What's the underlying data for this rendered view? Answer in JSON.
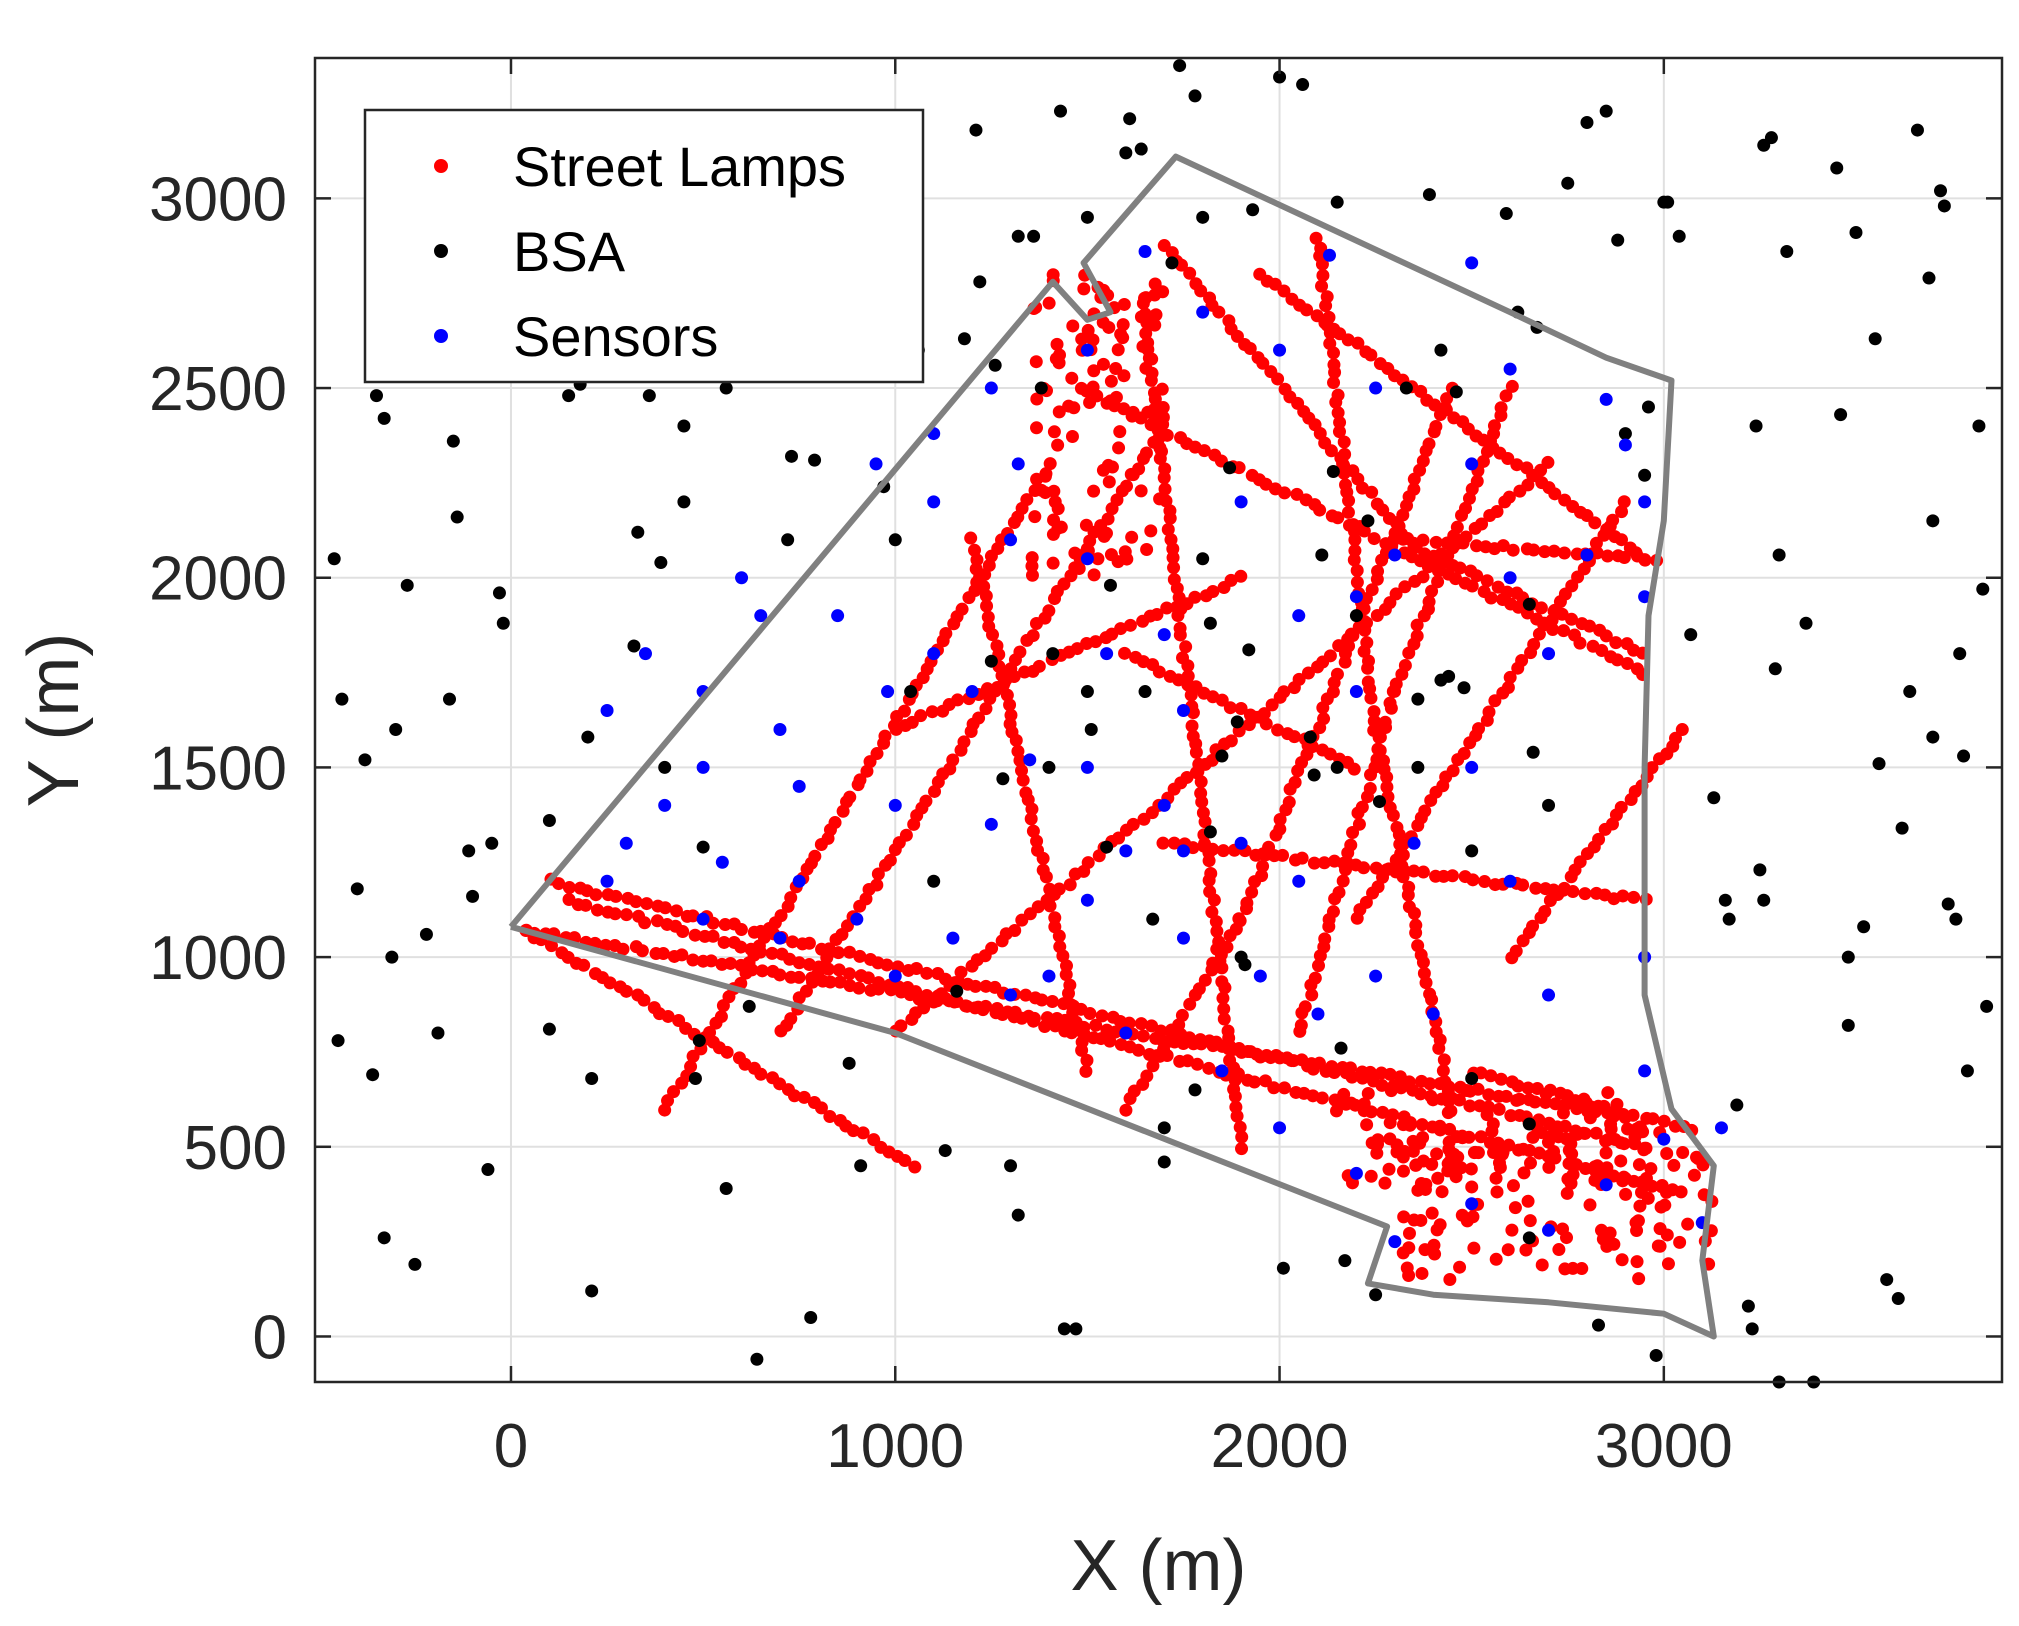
{
  "chart_data": {
    "type": "scatter",
    "xlabel": "X (m)",
    "ylabel": "Y (m)",
    "xlim": [
      -510,
      3880
    ],
    "ylim": [
      -120,
      3370
    ],
    "xticks": [
      0,
      1000,
      2000,
      3000
    ],
    "yticks": [
      0,
      500,
      1000,
      1500,
      2000,
      2500,
      3000
    ],
    "grid": true,
    "legend_position": "top-left",
    "colors": {
      "street_lamps": "#ff0000",
      "bsa": "#000000",
      "sensors": "#0000ff",
      "boundary": "#808080",
      "grid": "#e0e0e0",
      "axes": "#262626"
    },
    "legend": [
      "Street Lamps",
      "BSA",
      "Sensors"
    ],
    "boundary": [
      [
        0,
        1080
      ],
      [
        1410,
        2780
      ],
      [
        1500,
        2680
      ],
      [
        1560,
        2700
      ],
      [
        1490,
        2830
      ],
      [
        1730,
        3110
      ],
      [
        2600,
        2700
      ],
      [
        2850,
        2580
      ],
      [
        3020,
        2520
      ],
      [
        3000,
        2150
      ],
      [
        2960,
        1900
      ],
      [
        2950,
        1500
      ],
      [
        2950,
        1100
      ],
      [
        2950,
        900
      ],
      [
        3020,
        600
      ],
      [
        3130,
        450
      ],
      [
        3100,
        200
      ],
      [
        3130,
        0
      ],
      [
        3000,
        60
      ],
      [
        2700,
        90
      ],
      [
        2400,
        110
      ],
      [
        2230,
        140
      ],
      [
        2280,
        290
      ],
      [
        1000,
        800
      ],
      [
        0,
        1080
      ]
    ],
    "street_lamps": {
      "lines": [
        [
          [
            40,
            1070
          ],
          [
            2900,
            580
          ]
        ],
        [
          [
            40,
            1070
          ],
          [
            1050,
            450
          ]
        ],
        [
          [
            150,
            1150
          ],
          [
            3050,
            380
          ]
        ],
        [
          [
            100,
            1200
          ],
          [
            2950,
            500
          ]
        ],
        [
          [
            1000,
            800
          ],
          [
            2700,
            2300
          ]
        ],
        [
          [
            1700,
            2880
          ],
          [
            2350,
            2080
          ]
        ],
        [
          [
            2350,
            2080
          ],
          [
            2950,
            1800
          ]
        ],
        [
          [
            1480,
            2500
          ],
          [
            2950,
            1750
          ]
        ],
        [
          [
            1950,
            2800
          ],
          [
            2950,
            2050
          ]
        ],
        [
          [
            1650,
            2700
          ],
          [
            1900,
            500
          ]
        ],
        [
          [
            2100,
            2900
          ],
          [
            2250,
            1600
          ]
        ],
        [
          [
            2250,
            1600
          ],
          [
            2450,
            600
          ]
        ],
        [
          [
            2450,
            2500
          ],
          [
            1900,
            1100
          ]
        ],
        [
          [
            1900,
            1100
          ],
          [
            1600,
            600
          ]
        ],
        [
          [
            2600,
            2500
          ],
          [
            2300,
            1700
          ]
        ],
        [
          [
            2300,
            1700
          ],
          [
            2050,
            800
          ]
        ],
        [
          [
            1700,
            1300
          ],
          [
            2950,
            1150
          ]
        ],
        [
          [
            1600,
            1800
          ],
          [
            2200,
            1500
          ]
        ],
        [
          [
            700,
            800
          ],
          [
            1700,
            2400
          ]
        ],
        [
          [
            400,
            600
          ],
          [
            1400,
            2300
          ]
        ],
        [
          [
            1200,
            2100
          ],
          [
            1500,
            700
          ]
        ],
        [
          [
            2600,
            1000
          ],
          [
            3050,
            1600
          ]
        ],
        [
          [
            1000,
            1600
          ],
          [
            1900,
            2000
          ]
        ],
        [
          [
            2200,
            1100
          ],
          [
            2900,
            2200
          ]
        ],
        [
          [
            2300,
            2100
          ],
          [
            2980,
            2050
          ]
        ],
        [
          [
            2500,
            700
          ],
          [
            3050,
            550
          ]
        ]
      ],
      "blocks": [
        [
          [
            2300,
            150
          ],
          [
            3130,
            550
          ]
        ],
        [
          [
            1350,
            2000
          ],
          [
            1700,
            2800
          ]
        ],
        [
          [
            2100,
            400
          ],
          [
            2950,
            650
          ]
        ]
      ]
    },
    "sensors": [
      [
        1100,
        2380
      ],
      [
        1320,
        2300
      ],
      [
        1650,
        2860
      ],
      [
        2130,
        2850
      ],
      [
        2500,
        2830
      ],
      [
        2000,
        2600
      ],
      [
        2600,
        2550
      ],
      [
        2850,
        2470
      ],
      [
        2250,
        2500
      ],
      [
        1900,
        2200
      ],
      [
        2300,
        2060
      ],
      [
        2600,
        2000
      ],
      [
        2950,
        2200
      ],
      [
        2800,
        2060
      ],
      [
        2050,
        1900
      ],
      [
        1700,
        1850
      ],
      [
        1500,
        2050
      ],
      [
        1300,
        2100
      ],
      [
        1100,
        2200
      ],
      [
        1550,
        1800
      ],
      [
        1200,
        1700
      ],
      [
        980,
        1700
      ],
      [
        700,
        1600
      ],
      [
        500,
        1500
      ],
      [
        300,
        1300
      ],
      [
        400,
        1400
      ],
      [
        550,
        1250
      ],
      [
        750,
        1200
      ],
      [
        900,
        1100
      ],
      [
        1150,
        1050
      ],
      [
        1400,
        950
      ],
      [
        1700,
        1400
      ],
      [
        1900,
        1300
      ],
      [
        2200,
        1700
      ],
      [
        2500,
        1500
      ],
      [
        2700,
        1800
      ],
      [
        2950,
        1950
      ],
      [
        2600,
        1200
      ],
      [
        2950,
        1000
      ],
      [
        2950,
        700
      ],
      [
        3000,
        520
      ],
      [
        2850,
        400
      ],
      [
        2700,
        280
      ],
      [
        2500,
        350
      ],
      [
        2300,
        250
      ],
      [
        2200,
        430
      ],
      [
        2000,
        550
      ],
      [
        1850,
        700
      ],
      [
        1600,
        800
      ],
      [
        1300,
        900
      ],
      [
        1000,
        950
      ],
      [
        700,
        1050
      ],
      [
        500,
        1100
      ],
      [
        250,
        1200
      ],
      [
        1500,
        1500
      ],
      [
        1750,
        1650
      ],
      [
        2050,
        1200
      ],
      [
        2350,
        1300
      ],
      [
        2500,
        2300
      ],
      [
        2900,
        2350
      ],
      [
        1750,
        1280
      ],
      [
        1600,
        1280
      ],
      [
        1350,
        1520
      ],
      [
        1100,
        1800
      ],
      [
        850,
        1900
      ],
      [
        650,
        1900
      ],
      [
        600,
        2000
      ],
      [
        950,
        2300
      ],
      [
        1250,
        2500
      ],
      [
        1500,
        2600
      ],
      [
        1800,
        2700
      ],
      [
        2200,
        1950
      ],
      [
        2400,
        850
      ],
      [
        2700,
        900
      ],
      [
        3150,
        550
      ],
      [
        3100,
        300
      ],
      [
        2250,
        950
      ],
      [
        2100,
        850
      ],
      [
        1950,
        950
      ],
      [
        1750,
        1050
      ],
      [
        1500,
        1150
      ],
      [
        1250,
        1350
      ],
      [
        1000,
        1400
      ],
      [
        750,
        1450
      ],
      [
        500,
        1700
      ],
      [
        350,
        1800
      ],
      [
        250,
        1650
      ]
    ],
    "bsa": [
      [
        -460,
        2050
      ],
      [
        -440,
        1680
      ],
      [
        -380,
        1520
      ],
      [
        -350,
        2480
      ],
      [
        -330,
        2420
      ],
      [
        -300,
        1600
      ],
      [
        -270,
        1980
      ],
      [
        -160,
        1680
      ],
      [
        -150,
        2360
      ],
      [
        -140,
        2160
      ],
      [
        -110,
        1280
      ],
      [
        -100,
        1160
      ],
      [
        -50,
        1300
      ],
      [
        -30,
        1960
      ],
      [
        -20,
        1880
      ],
      [
        -310,
        1000
      ],
      [
        -360,
        690
      ],
      [
        -400,
        1180
      ],
      [
        -450,
        780
      ],
      [
        -330,
        260
      ],
      [
        -250,
        190
      ],
      [
        -190,
        800
      ],
      [
        -220,
        1060
      ],
      [
        -60,
        440
      ],
      [
        100,
        810
      ],
      [
        100,
        1360
      ],
      [
        150,
        2480
      ],
      [
        180,
        2510
      ],
      [
        200,
        1580
      ],
      [
        210,
        680
      ],
      [
        210,
        120
      ],
      [
        400,
        1500
      ],
      [
        360,
        2480
      ],
      [
        330,
        2120
      ],
      [
        320,
        1820
      ],
      [
        390,
        2040
      ],
      [
        450,
        2400
      ],
      [
        450,
        2200
      ],
      [
        490,
        780
      ],
      [
        500,
        1290
      ],
      [
        480,
        680
      ],
      [
        560,
        390
      ],
      [
        560,
        2500
      ],
      [
        620,
        870
      ],
      [
        640,
        -60
      ],
      [
        720,
        2100
      ],
      [
        730,
        2320
      ],
      [
        790,
        2310
      ],
      [
        780,
        50
      ],
      [
        880,
        720
      ],
      [
        910,
        450
      ],
      [
        970,
        2240
      ],
      [
        1000,
        2100
      ],
      [
        1040,
        1700
      ],
      [
        1060,
        2600
      ],
      [
        1100,
        1200
      ],
      [
        1130,
        490
      ],
      [
        1160,
        910
      ],
      [
        1180,
        2630
      ],
      [
        1210,
        3180
      ],
      [
        1220,
        2780
      ],
      [
        1260,
        2560
      ],
      [
        1280,
        1470
      ],
      [
        1300,
        450
      ],
      [
        1320,
        2900
      ],
      [
        1320,
        320
      ],
      [
        1360,
        2900
      ],
      [
        1380,
        2500
      ],
      [
        1400,
        1500
      ],
      [
        1410,
        1800
      ],
      [
        1430,
        3230
      ],
      [
        1440,
        20
      ],
      [
        1500,
        2950
      ],
      [
        1510,
        1600
      ],
      [
        1550,
        1290
      ],
      [
        1560,
        1980
      ],
      [
        1600,
        3120
      ],
      [
        1610,
        3210
      ],
      [
        1640,
        3130
      ],
      [
        1670,
        1100
      ],
      [
        1700,
        460
      ],
      [
        1700,
        550
      ],
      [
        1720,
        2830
      ],
      [
        1740,
        3350
      ],
      [
        1780,
        3270
      ],
      [
        1780,
        650
      ],
      [
        1800,
        2950
      ],
      [
        1800,
        2050
      ],
      [
        1820,
        1330
      ],
      [
        1820,
        1880
      ],
      [
        1850,
        1530
      ],
      [
        1870,
        2290
      ],
      [
        1890,
        1620
      ],
      [
        1900,
        1000
      ],
      [
        1910,
        980
      ],
      [
        1920,
        1810
      ],
      [
        1930,
        2970
      ],
      [
        2000,
        3320
      ],
      [
        2060,
        3300
      ],
      [
        2080,
        1580
      ],
      [
        2090,
        1480
      ],
      [
        2110,
        2060
      ],
      [
        2140,
        2280
      ],
      [
        2150,
        2990
      ],
      [
        2150,
        1500
      ],
      [
        2160,
        760
      ],
      [
        2170,
        200
      ],
      [
        2200,
        1900
      ],
      [
        2230,
        2150
      ],
      [
        2250,
        110
      ],
      [
        2260,
        1410
      ],
      [
        2330,
        2500
      ],
      [
        2360,
        1680
      ],
      [
        2360,
        1500
      ],
      [
        2390,
        3010
      ],
      [
        2420,
        2600
      ],
      [
        2440,
        1740
      ],
      [
        2460,
        2490
      ],
      [
        2480,
        1710
      ],
      [
        2500,
        1280
      ],
      [
        2500,
        680
      ],
      [
        2590,
        2960
      ],
      [
        2620,
        2700
      ],
      [
        2650,
        1930
      ],
      [
        2650,
        560
      ],
      [
        2650,
        260
      ],
      [
        2660,
        1540
      ],
      [
        2670,
        2660
      ],
      [
        2750,
        3040
      ],
      [
        2800,
        3200
      ],
      [
        2850,
        3230
      ],
      [
        2880,
        2890
      ],
      [
        2900,
        2380
      ],
      [
        2950,
        2270
      ],
      [
        2960,
        2450
      ],
      [
        3000,
        2990
      ],
      [
        3010,
        2990
      ],
      [
        3040,
        2900
      ],
      [
        3070,
        1850
      ],
      [
        3130,
        1420
      ],
      [
        3160,
        1150
      ],
      [
        3170,
        1100
      ],
      [
        3190,
        610
      ],
      [
        3220,
        80
      ],
      [
        3230,
        20
      ],
      [
        3240,
        2400
      ],
      [
        3250,
        1230
      ],
      [
        3260,
        3140
      ],
      [
        3280,
        3160
      ],
      [
        3290,
        1760
      ],
      [
        3300,
        2060
      ],
      [
        3320,
        2860
      ],
      [
        3370,
        1880
      ],
      [
        3390,
        -120
      ],
      [
        3450,
        3080
      ],
      [
        3460,
        2430
      ],
      [
        3480,
        1000
      ],
      [
        3480,
        820
      ],
      [
        3500,
        2910
      ],
      [
        3520,
        1080
      ],
      [
        3550,
        2630
      ],
      [
        3560,
        1510
      ],
      [
        3580,
        150
      ],
      [
        3610,
        100
      ],
      [
        3620,
        1340
      ],
      [
        3640,
        1700
      ],
      [
        3660,
        3180
      ],
      [
        3690,
        2790
      ],
      [
        3700,
        2150
      ],
      [
        3700,
        1580
      ],
      [
        3720,
        3020
      ],
      [
        3730,
        2980
      ],
      [
        3740,
        1140
      ],
      [
        3760,
        1100
      ],
      [
        3770,
        1800
      ],
      [
        3780,
        1530
      ],
      [
        3790,
        700
      ],
      [
        3820,
        2400
      ],
      [
        3830,
        1970
      ],
      [
        3840,
        870
      ],
      [
        3260,
        1150
      ],
      [
        2980,
        -50
      ],
      [
        2830,
        30
      ],
      [
        2010,
        180
      ],
      [
        1470,
        20
      ],
      [
        1250,
        1780
      ],
      [
        2420,
        1730
      ],
      [
        2700,
        1400
      ],
      [
        1500,
        1700
      ],
      [
        1650,
        1700
      ],
      [
        3300,
        -120
      ]
    ]
  }
}
